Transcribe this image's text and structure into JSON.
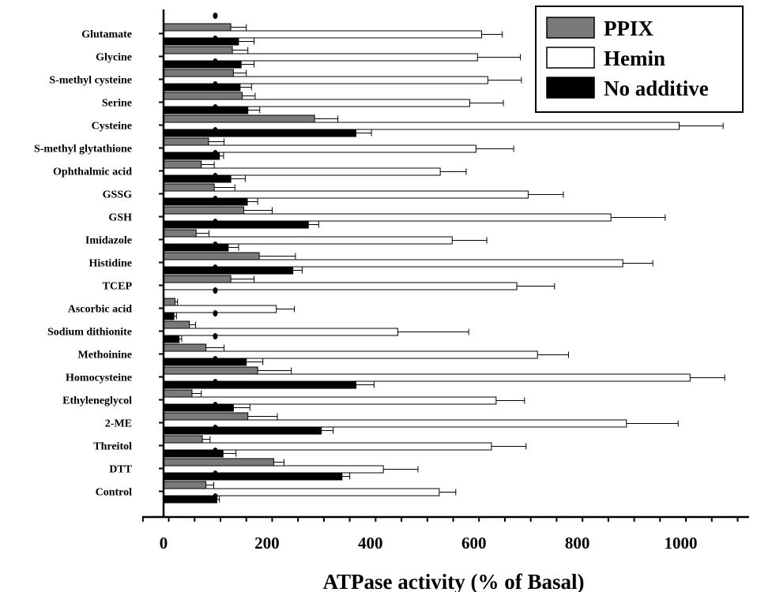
{
  "chart_data": {
    "type": "bar",
    "orientation": "horizontal",
    "xlabel": "ATPase activity (% of Basal)",
    "ylabel": "",
    "title": "",
    "xlim": [
      0,
      1150
    ],
    "xticks": [
      0,
      200,
      400,
      600,
      800,
      1000
    ],
    "reference_line": 100,
    "legend_position": "top-right",
    "categories": [
      "Glutamate",
      "Glycine",
      "S-methyl cysteine",
      "Serine",
      "Cysteine",
      "S-methyl glytathione",
      "Ophthalmic acid",
      "GSSG",
      "GSH",
      "Imidazole",
      "Histidine",
      "TCEP",
      "Ascorbic acid",
      "Sodium dithionite",
      "Methoinine",
      "Homocysteine",
      "Ethyleneglycol",
      "2-ME",
      "Threitol",
      "DTT",
      "Control"
    ],
    "series": [
      {
        "name": "PPIX",
        "color": "#7a7a7a",
        "values": [
          130,
          133,
          135,
          152,
          292,
          87,
          73,
          98,
          155,
          63,
          185,
          130,
          22,
          50,
          82,
          182,
          55,
          163,
          75,
          213,
          82
        ],
        "errors": [
          30,
          30,
          25,
          25,
          45,
          30,
          25,
          40,
          55,
          25,
          70,
          45,
          5,
          12,
          35,
          65,
          18,
          57,
          15,
          20,
          15
        ]
      },
      {
        "name": "Hemin",
        "color": "#ffffff",
        "values": [
          615,
          607,
          627,
          592,
          997,
          604,
          535,
          705,
          865,
          558,
          888,
          683,
          218,
          453,
          723,
          1018,
          643,
          895,
          634,
          425,
          533
        ],
        "errors": [
          40,
          83,
          65,
          65,
          85,
          73,
          50,
          68,
          105,
          67,
          58,
          73,
          35,
          137,
          60,
          67,
          55,
          100,
          67,
          67,
          32
        ]
      },
      {
        "name": "No additive",
        "color": "#000000",
        "values": [
          145,
          150,
          148,
          163,
          372,
          108,
          130,
          162,
          280,
          125,
          250,
          0,
          20,
          30,
          160,
          372,
          135,
          305,
          115,
          345,
          103
        ],
        "errors": [
          30,
          25,
          22,
          23,
          30,
          8,
          28,
          20,
          20,
          20,
          18,
          0,
          5,
          5,
          32,
          35,
          32,
          23,
          25,
          15,
          5
        ]
      }
    ]
  }
}
